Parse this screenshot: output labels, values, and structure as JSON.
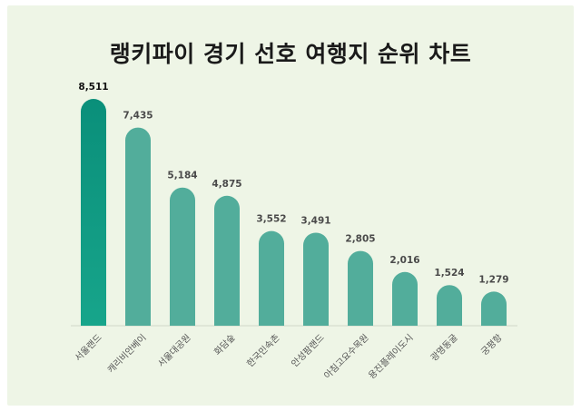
{
  "chart_data": {
    "type": "bar",
    "title": "랭키파이 경기 선호 여행지 순위 차트",
    "categories": [
      "서울랜드",
      "캐리비안베이",
      "서울대공원",
      "화담숲",
      "한국민속촌",
      "안성팜랜드",
      "아침고요수목원",
      "용진플레이도시",
      "광명동굴",
      "궁평항"
    ],
    "values": [
      8511,
      7435,
      5184,
      4875,
      3552,
      3491,
      2805,
      2016,
      1524,
      1279
    ],
    "value_labels": [
      "8,511",
      "7,435",
      "5,184",
      "4,875",
      "3,552",
      "3,491",
      "2,805",
      "2,016",
      "1,524",
      "1,279"
    ],
    "ylim": [
      0,
      8511
    ],
    "grid": false,
    "colors": {
      "highlight_top": "#0a8f7a",
      "highlight_bottom": "#17a58b",
      "bar": "#52ad9b",
      "background": "#eef5e6"
    }
  }
}
